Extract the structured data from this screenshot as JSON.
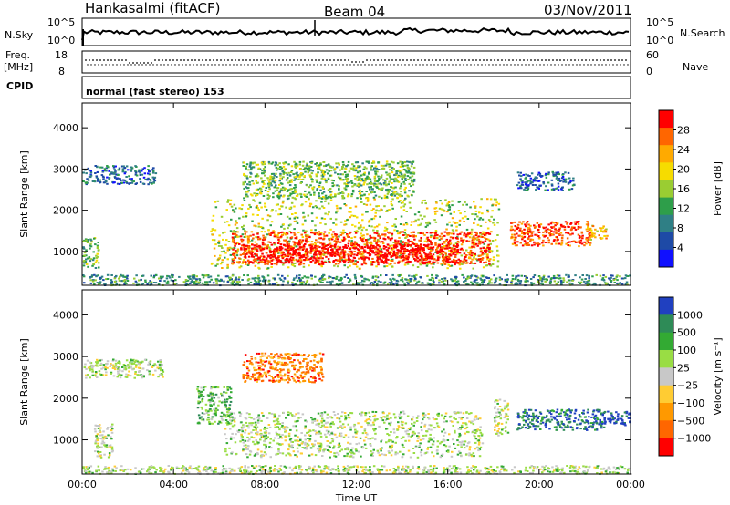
{
  "header": {
    "station": "Hankasalmi (fitACF)",
    "beam": "Beam 04",
    "date": "03/Nov/2011"
  },
  "strips": {
    "nsky_label": "N.Sky",
    "nsky_ticks": [
      "10^5",
      "10^0"
    ],
    "nsearch_label": "N.Search",
    "nsearch_ticks": [
      "10^5",
      "10^0"
    ],
    "freq_label_1": "Freq.",
    "freq_label_2": "[MHz]",
    "freq_ticks": [
      "18",
      "8"
    ],
    "nave_label": "Nave",
    "nave_ticks": [
      "60",
      "0"
    ],
    "cpid_label": "CPID",
    "cpid_text": "normal (fast stereo) 153"
  },
  "chart_data": [
    {
      "type": "heatmap",
      "name": "power",
      "ylabel": "Slant Range [km]",
      "xlabel": "",
      "xlim": [
        0,
        24
      ],
      "ylim": [
        180,
        4600
      ],
      "y_ticks": [
        "1000",
        "2000",
        "3000",
        "4000"
      ],
      "x_ticks": [
        "00:00",
        "04:00",
        "08:00",
        "12:00",
        "16:00",
        "20:00",
        "00:00"
      ],
      "colorbar": {
        "label": "Power [dB]",
        "ticks": [
          "28",
          "24",
          "20",
          "16",
          "12",
          "8",
          "4"
        ],
        "colors": [
          "#ff0000",
          "#ff6600",
          "#ffaa00",
          "#f6dc00",
          "#9acd32",
          "#2e9e4a",
          "#2f7f85",
          "#1e4aa6",
          "#1010ff"
        ]
      },
      "regions": [
        {
          "t0": 0.0,
          "t1": 3.2,
          "r0": 2650,
          "r1": 3100,
          "level": 7
        },
        {
          "t0": 0.0,
          "t1": 0.7,
          "r0": 600,
          "r1": 1350,
          "level": 5
        },
        {
          "t0": 5.6,
          "t1": 18.2,
          "r0": 600,
          "r1": 2300,
          "level": 4
        },
        {
          "t0": 6.5,
          "t1": 17.8,
          "r0": 700,
          "r1": 1500,
          "level": 1
        },
        {
          "t0": 7.0,
          "t1": 16.5,
          "r0": 750,
          "r1": 1200,
          "level": 0
        },
        {
          "t0": 7.0,
          "t1": 14.5,
          "r0": 2300,
          "r1": 3200,
          "level": 5
        },
        {
          "t0": 18.7,
          "t1": 22.3,
          "r0": 1150,
          "r1": 1750,
          "level": 1
        },
        {
          "t0": 22.0,
          "t1": 23.0,
          "r0": 1300,
          "r1": 1650,
          "level": 3
        },
        {
          "t0": 19.0,
          "t1": 21.5,
          "r0": 2500,
          "r1": 2950,
          "level": 7
        },
        {
          "t0": 0.0,
          "t1": 24.0,
          "r0": 200,
          "r1": 450,
          "level": 6
        }
      ]
    },
    {
      "type": "heatmap",
      "name": "velocity",
      "ylabel": "Slant Range [km]",
      "xlabel": "Time UT",
      "xlim": [
        0,
        24
      ],
      "ylim": [
        180,
        4600
      ],
      "y_ticks": [
        "1000",
        "2000",
        "3000",
        "4000"
      ],
      "x_ticks": [
        "00:00",
        "04:00",
        "08:00",
        "12:00",
        "16:00",
        "20:00",
        "00:00"
      ],
      "colorbar": {
        "label": "Velocity [m s⁻¹]",
        "ticks": [
          "1000",
          "500",
          "100",
          "25",
          "−25",
          "−100",
          "−500",
          "−1000"
        ],
        "colors": [
          "#2040c0",
          "#2e8b57",
          "#33aa33",
          "#99dd44",
          "#c8c8c8",
          "#ffcc33",
          "#ff9900",
          "#ff6600",
          "#ff0000"
        ]
      },
      "regions": [
        {
          "t0": 0.0,
          "t1": 3.5,
          "r0": 2500,
          "r1": 2950,
          "level": 4
        },
        {
          "t0": 0.5,
          "t1": 1.3,
          "r0": 600,
          "r1": 1400,
          "level": 4
        },
        {
          "t0": 6.2,
          "t1": 17.5,
          "r0": 600,
          "r1": 1700,
          "level": 4
        },
        {
          "t0": 7.0,
          "t1": 10.5,
          "r0": 2400,
          "r1": 3100,
          "level": 7
        },
        {
          "t0": 5.0,
          "t1": 6.5,
          "r0": 1400,
          "r1": 2300,
          "level": 3
        },
        {
          "t0": 18.0,
          "t1": 18.6,
          "r0": 1100,
          "r1": 2000,
          "level": 4
        },
        {
          "t0": 19.0,
          "t1": 22.8,
          "r0": 1250,
          "r1": 1750,
          "level": 1
        },
        {
          "t0": 22.5,
          "t1": 24.0,
          "r0": 1350,
          "r1": 1700,
          "level": 0
        },
        {
          "t0": 0.0,
          "t1": 24.0,
          "r0": 200,
          "r1": 400,
          "level": 4
        }
      ]
    }
  ]
}
